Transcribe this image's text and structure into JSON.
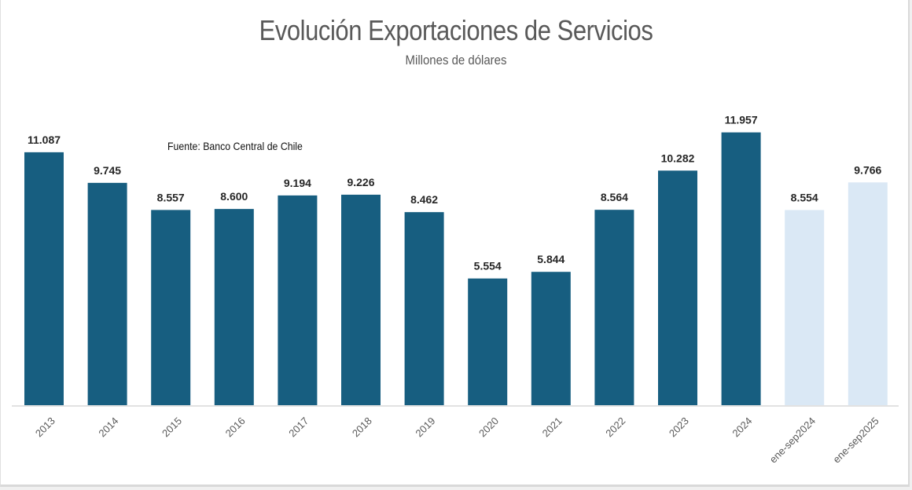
{
  "chart_data": {
    "type": "bar",
    "title": "Evolución Exportaciones de Servicios",
    "subtitle": "Millones de dólares",
    "annotation": "Fuente: Banco Central de Chile",
    "xlabel": "",
    "ylabel": "",
    "ylim": [
      0,
      17760
    ],
    "grid": false,
    "legend": "none",
    "categories": [
      "2013",
      "2014",
      "2015",
      "2016",
      "2017",
      "2018",
      "2019",
      "2020",
      "2021",
      "2022",
      "2023",
      "2024",
      "ene-sep2024",
      "ene-sep2025"
    ],
    "values": [
      11087,
      9745,
      8557,
      8600,
      9194,
      9226,
      8462,
      5554,
      5844,
      8564,
      10282,
      11957,
      8554,
      9766
    ],
    "data_labels": [
      "11.087",
      "9.745",
      "8.557",
      "8.600",
      "9.194",
      "9.226",
      "8.462",
      "5.554",
      "5.844",
      "8.564",
      "10.282",
      "11.957",
      "8.554",
      "9.766"
    ],
    "bar_colors": [
      "#175e80",
      "#175e80",
      "#175e80",
      "#175e80",
      "#175e80",
      "#175e80",
      "#175e80",
      "#175e80",
      "#175e80",
      "#175e80",
      "#175e80",
      "#175e80",
      "#dae8f5",
      "#dae8f5"
    ]
  }
}
